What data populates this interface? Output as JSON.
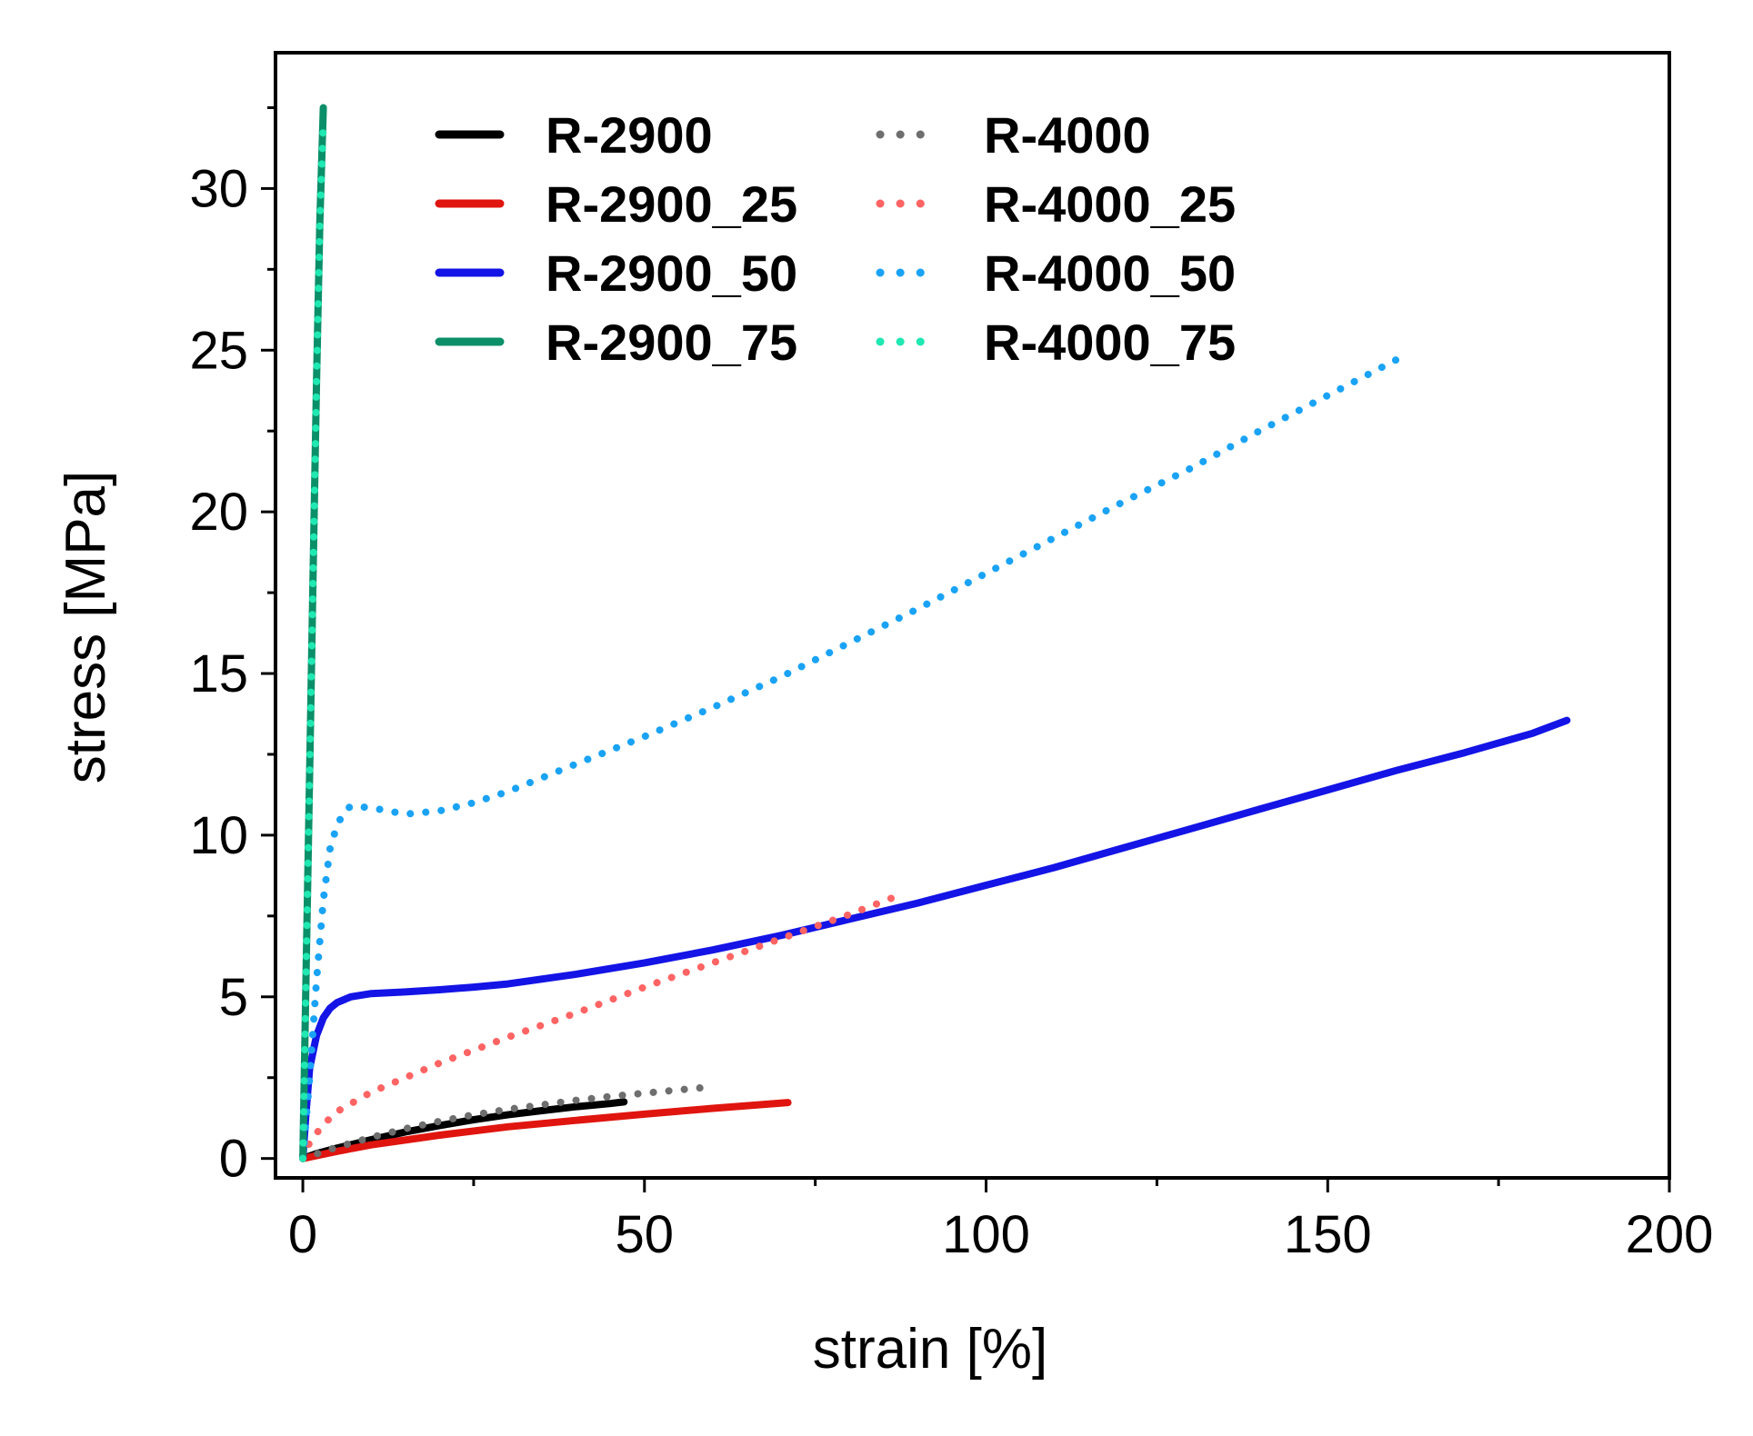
{
  "chart_data": {
    "type": "line",
    "xlabel": "strain [%]",
    "ylabel": "stress [MPa]",
    "xlim": [
      -4,
      200
    ],
    "ylim": [
      -0.6,
      34.2
    ],
    "xticks": [
      0,
      50,
      100,
      150,
      200
    ],
    "yticks": [
      0,
      5,
      10,
      15,
      20,
      25,
      30
    ],
    "x_minor_step": 25,
    "y_minor_step": 2.5,
    "legend_position": "top",
    "series": [
      {
        "name": "R-2900",
        "color": "#000000",
        "style": "solid",
        "x": [
          0,
          2,
          5,
          10,
          15,
          20,
          25,
          30,
          35,
          40,
          45,
          47
        ],
        "y": [
          0,
          0.15,
          0.32,
          0.58,
          0.82,
          1.02,
          1.2,
          1.35,
          1.48,
          1.6,
          1.7,
          1.75
        ]
      },
      {
        "name": "R-2900_25",
        "color": "#e0150f",
        "style": "solid",
        "x": [
          0,
          5,
          10,
          20,
          30,
          40,
          50,
          60,
          71
        ],
        "y": [
          0,
          0.22,
          0.42,
          0.72,
          0.98,
          1.18,
          1.37,
          1.55,
          1.73
        ]
      },
      {
        "name": "R-2900_50",
        "color": "#1414e6",
        "style": "solid",
        "x": [
          0,
          0.5,
          1,
          2,
          3,
          4,
          5,
          7,
          10,
          15,
          20,
          25,
          30,
          40,
          50,
          60,
          70,
          80,
          90,
          100,
          110,
          120,
          130,
          140,
          150,
          160,
          170,
          180,
          185
        ],
        "y": [
          0,
          1.5,
          2.8,
          3.8,
          4.35,
          4.65,
          4.82,
          5.0,
          5.1,
          5.15,
          5.22,
          5.3,
          5.4,
          5.7,
          6.05,
          6.45,
          6.9,
          7.4,
          7.9,
          8.45,
          9.0,
          9.6,
          10.2,
          10.8,
          11.4,
          12.0,
          12.55,
          13.15,
          13.55
        ]
      },
      {
        "name": "R-2900_75",
        "color": "#0b8f68",
        "style": "solid",
        "x": [
          0,
          0.5,
          1,
          1.5,
          2,
          2.5,
          3
        ],
        "y": [
          0,
          6,
          12,
          18,
          24,
          29,
          32.5
        ]
      },
      {
        "name": "R-4000",
        "color": "#6e6e6e",
        "style": "dotted",
        "x": [
          0,
          5,
          10,
          15,
          20,
          25,
          30,
          35,
          40,
          45,
          50,
          55,
          59
        ],
        "y": [
          0,
          0.35,
          0.65,
          0.92,
          1.15,
          1.35,
          1.52,
          1.66,
          1.8,
          1.92,
          2.02,
          2.12,
          2.2
        ]
      },
      {
        "name": "R-4000_25",
        "color": "#ff6464",
        "style": "dotted",
        "x": [
          0,
          1,
          3,
          5,
          10,
          20,
          30,
          40,
          50,
          60,
          70,
          80,
          88
        ],
        "y": [
          0,
          0.5,
          1.05,
          1.45,
          2.05,
          2.95,
          3.75,
          4.5,
          5.3,
          6.05,
          6.8,
          7.55,
          8.2
        ]
      },
      {
        "name": "R-4000_50",
        "color": "#1aa3f5",
        "style": "dotted",
        "x": [
          0,
          1,
          2,
          3,
          4,
          5,
          6,
          7,
          10,
          15,
          20,
          25,
          30,
          40,
          50,
          60,
          70,
          80,
          90,
          100,
          110,
          120,
          130,
          140,
          150,
          160
        ],
        "y": [
          0,
          2.5,
          5.5,
          8.0,
          9.6,
          10.3,
          10.7,
          10.9,
          10.85,
          10.65,
          10.75,
          11.0,
          11.35,
          12.2,
          13.05,
          13.95,
          14.9,
          15.95,
          17.0,
          18.1,
          19.2,
          20.3,
          21.35,
          22.5,
          23.6,
          24.7
        ]
      },
      {
        "name": "R-4000_75",
        "color": "#1fe8b2",
        "style": "dotted",
        "x": [
          0,
          0.5,
          1,
          1.5,
          2,
          2.5,
          3
        ],
        "y": [
          0,
          6,
          12,
          18,
          24,
          29,
          32
        ]
      }
    ]
  }
}
